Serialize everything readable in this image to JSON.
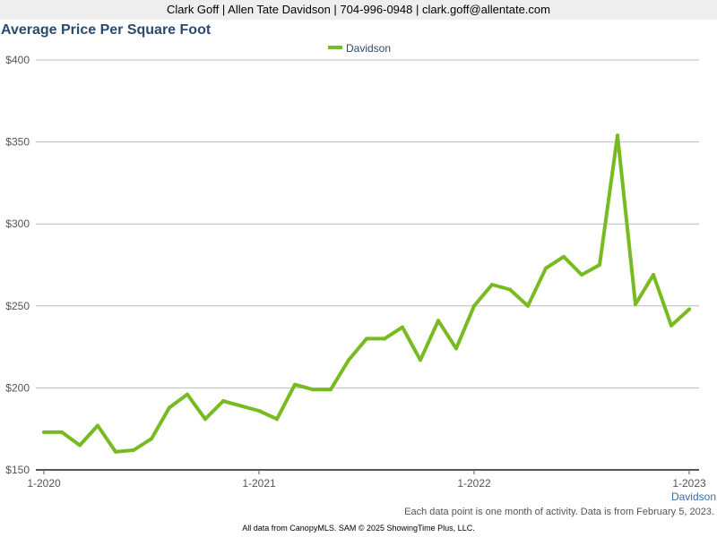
{
  "header": {
    "contact": "Clark Goff | Allen Tate Davidson | 704-996-0948 | clark.goff@allentate.com"
  },
  "footer": {
    "area_label": "Davidson",
    "note": "Each data point is one month of activity. Data is from February 5, 2023.",
    "source": "All data from CanopyMLS. SAM © 2025 ShowingTime Plus, LLC."
  },
  "colors": {
    "series": "#77bb22",
    "title": "#2b4a6f",
    "grid": "#bbbbbb",
    "axis": "#555555"
  },
  "chart_data": {
    "type": "line",
    "title": "Average Price Per Square Foot",
    "xlabel": "",
    "ylabel": "",
    "ylim": [
      150,
      400
    ],
    "yticks": [
      150,
      200,
      250,
      300,
      350,
      400
    ],
    "ytick_labels": [
      "$150",
      "$200",
      "$250",
      "$300",
      "$350",
      "$400"
    ],
    "xtick_labels": [
      "1-2020",
      "1-2021",
      "1-2022",
      "1-2023"
    ],
    "xtick_months": [
      0,
      12,
      24,
      36
    ],
    "grid": true,
    "legend_position": "top-center",
    "x_start": "2020-01",
    "series": [
      {
        "name": "Davidson",
        "values": [
          173,
          173,
          165,
          177,
          161,
          162,
          169,
          188,
          196,
          181,
          192,
          189,
          186,
          181,
          202,
          199,
          199,
          217,
          230,
          230,
          237,
          217,
          241,
          224,
          250,
          263,
          260,
          250,
          273,
          280,
          269,
          275,
          354,
          251,
          269,
          238,
          248
        ]
      }
    ]
  }
}
